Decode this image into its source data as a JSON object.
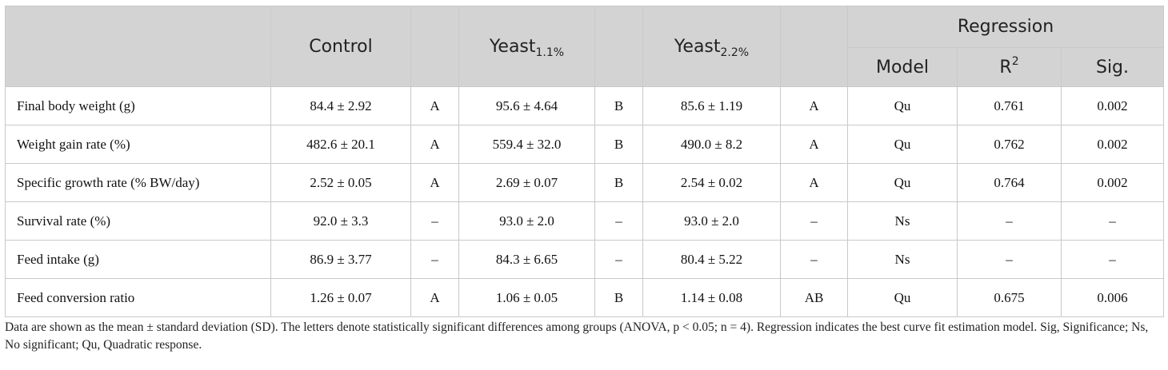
{
  "header": {
    "control": "Control",
    "yeast1_base": "Yeast",
    "yeast1_sub": "1.1%",
    "yeast2_base": "Yeast",
    "yeast2_sub": "2.2%",
    "regression": "Regression",
    "model": "Model",
    "r2_base": "R",
    "r2_sup": "2",
    "sig": "Sig."
  },
  "rows": [
    {
      "label": "Final body weight (g)",
      "control": "84.4 ± 2.92",
      "control_letter": "A",
      "yeast1": "95.6 ± 4.64",
      "yeast1_letter": "B",
      "yeast2": "85.6 ± 1.19",
      "yeast2_letter": "A",
      "model": "Qu",
      "r2": "0.761",
      "sig": "0.002"
    },
    {
      "label": "Weight gain rate (%)",
      "control": "482.6 ± 20.1",
      "control_letter": "A",
      "yeast1": "559.4 ± 32.0",
      "yeast1_letter": "B",
      "yeast2": "490.0 ± 8.2",
      "yeast2_letter": "A",
      "model": "Qu",
      "r2": "0.762",
      "sig": "0.002"
    },
    {
      "label": "Specific growth rate (% BW/day)",
      "control": "2.52 ± 0.05",
      "control_letter": "A",
      "yeast1": "2.69 ± 0.07",
      "yeast1_letter": "B",
      "yeast2": "2.54 ± 0.02",
      "yeast2_letter": "A",
      "model": "Qu",
      "r2": "0.764",
      "sig": "0.002"
    },
    {
      "label": "Survival rate (%)",
      "control": "92.0 ± 3.3",
      "control_letter": "–",
      "yeast1": "93.0 ± 2.0",
      "yeast1_letter": "–",
      "yeast2": "93.0 ± 2.0",
      "yeast2_letter": "–",
      "model": "Ns",
      "r2": "–",
      "sig": "–"
    },
    {
      "label": "Feed intake (g)",
      "control": "86.9 ± 3.77",
      "control_letter": "–",
      "yeast1": "84.3 ± 6.65",
      "yeast1_letter": "–",
      "yeast2": "80.4 ± 5.22",
      "yeast2_letter": "–",
      "model": "Ns",
      "r2": "–",
      "sig": "–"
    },
    {
      "label": "Feed conversion ratio",
      "control": "1.26 ± 0.07",
      "control_letter": "A",
      "yeast1": "1.06 ± 0.05",
      "yeast1_letter": "B",
      "yeast2": "1.14 ± 0.08",
      "yeast2_letter": "AB",
      "model": "Qu",
      "r2": "0.675",
      "sig": "0.006"
    }
  ],
  "footnote": "Data are shown as the mean ± standard deviation (SD). The letters denote statistically significant differences among groups (ANOVA, p < 0.05; n = 4). Regression indicates the best curve fit estimation model. Sig, Significance; Ns, No significant; Qu, Quadratic response."
}
